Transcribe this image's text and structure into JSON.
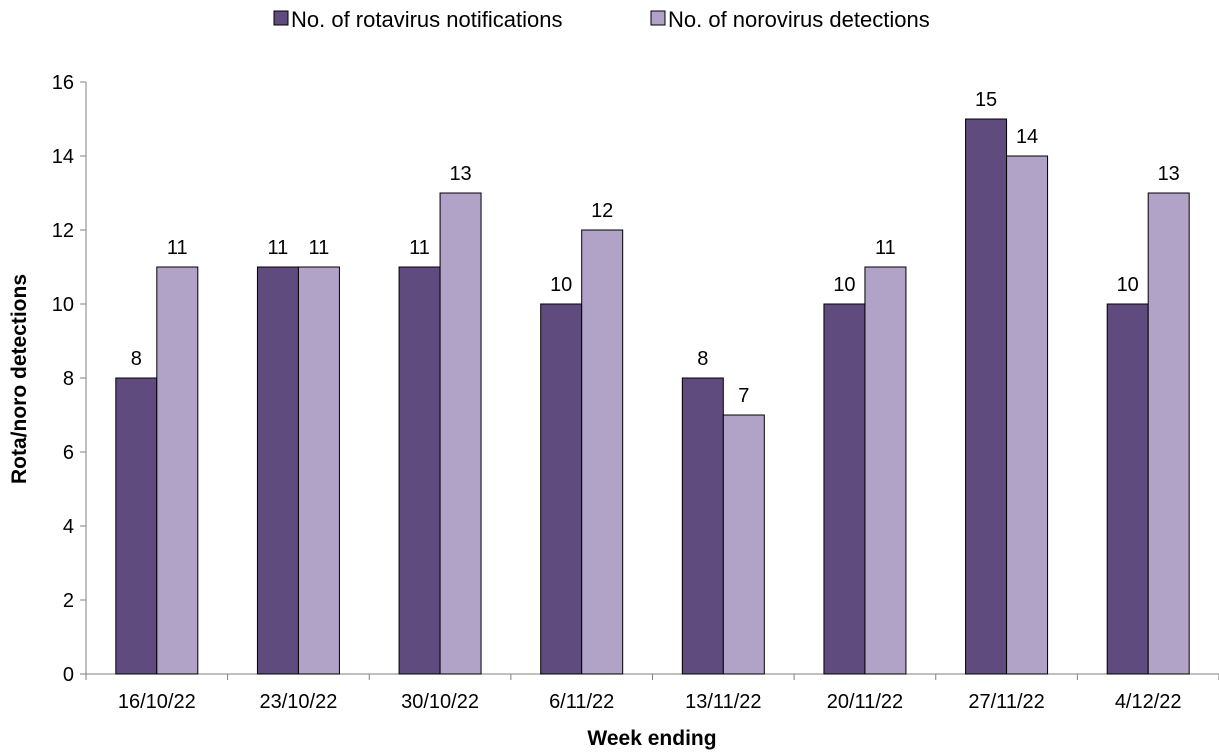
{
  "chart_data": {
    "type": "bar",
    "categories": [
      "16/10/22",
      "23/10/22",
      "30/10/22",
      "6/11/22",
      "13/11/22",
      "20/11/22",
      "27/11/22",
      "4/12/22"
    ],
    "series": [
      {
        "name": "No. of rotavirus notifications",
        "color": "#5f4b7d",
        "values": [
          8,
          11,
          11,
          10,
          8,
          10,
          15,
          10
        ]
      },
      {
        "name": "No. of norovirus detections",
        "color": "#b1a2c8",
        "values": [
          11,
          11,
          13,
          12,
          7,
          11,
          14,
          13
        ]
      }
    ],
    "xlabel": "Week ending",
    "ylabel": "Rota/noro detections",
    "ylim": [
      0,
      16
    ],
    "yticks": [
      "0",
      "2",
      "4",
      "6",
      "8",
      "10",
      "12",
      "14",
      "16"
    ],
    "grid": false,
    "legend_position": "top-center",
    "data_labels": true
  }
}
